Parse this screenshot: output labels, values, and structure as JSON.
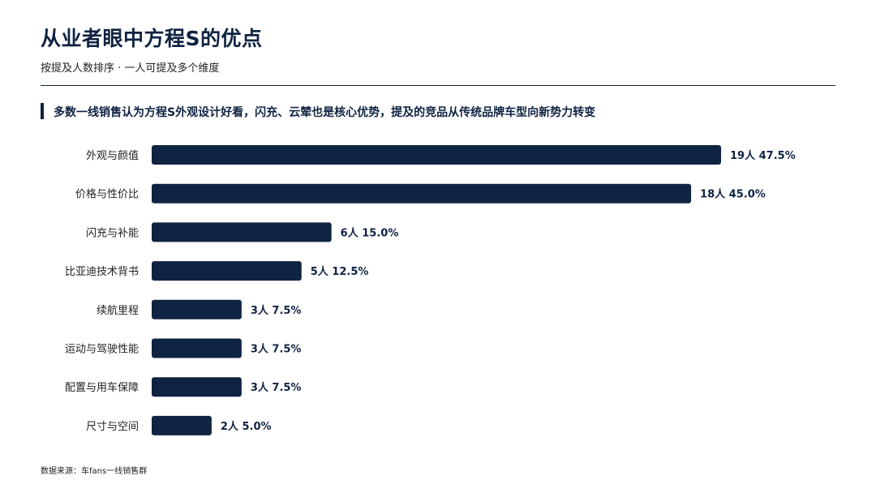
{
  "header": {
    "title": "从业者眼中方程S的优点",
    "subtitle": "按提及人数排序 · 一人可提及多个维度"
  },
  "callout": {
    "text": "多数一线销售认为方程S外观设计好看，闪充、云辇也是核心优势，提及的竞品从传统品牌车型向新势力转变"
  },
  "footer": {
    "source": "数据来源：车fans一线销售群"
  },
  "colors": {
    "bar": "#0f2342",
    "text": "#0f2342"
  },
  "chart_data": {
    "type": "bar",
    "orientation": "horizontal",
    "categories": [
      "外观与颜值",
      "价格与性价比",
      "闪充与补能",
      "比亚迪技术背书",
      "续航里程",
      "运动与驾驶性能",
      "配置与用车保障",
      "尺寸与空间"
    ],
    "counts": [
      19,
      18,
      6,
      5,
      3,
      3,
      3,
      2
    ],
    "percents": [
      47.5,
      45.0,
      15.0,
      12.5,
      7.5,
      7.5,
      7.5,
      5.0
    ],
    "value_labels": [
      "19人 47.5%",
      "18人 45.0%",
      "6人 15.0%",
      "5人 12.5%",
      "3人 7.5%",
      "3人 7.5%",
      "3人 7.5%",
      "2人 5.0%"
    ],
    "title": "",
    "xlabel": "",
    "ylabel": "",
    "grid": false
  }
}
